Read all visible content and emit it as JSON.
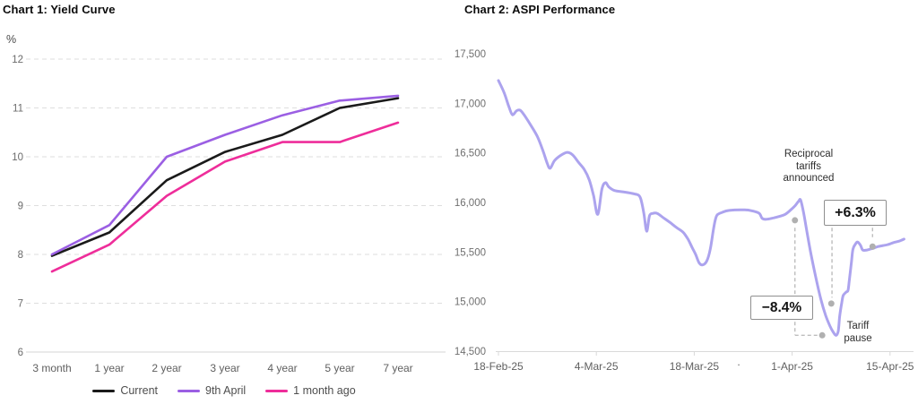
{
  "chart_data": [
    {
      "id": "yield-curve",
      "type": "line",
      "title": "Chart 1: Yield Curve",
      "ylabel": "%",
      "categories": [
        "3 month",
        "1 year",
        "2 year",
        "3 year",
        "4 year",
        "5 year",
        "7 year"
      ],
      "series": [
        {
          "name": "Current",
          "color": "#1a1a1a",
          "values": [
            7.97,
            8.45,
            9.52,
            10.1,
            10.45,
            11.0,
            11.2
          ]
        },
        {
          "name": "9th April",
          "color": "#9b5fe3",
          "values": [
            8.0,
            8.6,
            10.0,
            10.45,
            10.85,
            11.15,
            11.25
          ]
        },
        {
          "name": "1 month ago",
          "color": "#ee2d9a",
          "values": [
            7.65,
            8.2,
            9.2,
            9.9,
            10.3,
            10.3,
            10.7
          ]
        }
      ],
      "ylim": [
        6,
        12
      ],
      "yticks": [
        12,
        11,
        10,
        9,
        8,
        7,
        6
      ],
      "grid": "dashed horizontal gridlines with solid baseline",
      "legend_position": "bottom"
    },
    {
      "id": "aspi-performance",
      "type": "line",
      "title": "Chart 2: ASPI Performance",
      "x_axis": "trading dates, expressed as day offsets from 18-Feb-25",
      "xticks": [
        {
          "day": 0,
          "label": "18-Feb-25"
        },
        {
          "day": 14,
          "label": "4-Mar-25"
        },
        {
          "day": 28,
          "label": "18-Mar-25"
        },
        {
          "day": 42,
          "label": "1-Apr-25"
        },
        {
          "day": 56,
          "label": "15-Apr-25"
        }
      ],
      "xlim": [
        0,
        58.5
      ],
      "ylim": [
        14500,
        17500
      ],
      "yticks": [
        17500,
        17000,
        16500,
        16000,
        15500,
        15000,
        14500
      ],
      "grid": "none",
      "series": [
        {
          "name": "ASPI",
          "color": "#aca3ee",
          "points": [
            [
              0,
              17230
            ],
            [
              0.8,
              17110
            ],
            [
              1.5,
              16965
            ],
            [
              2,
              16885
            ],
            [
              2.6,
              16925
            ],
            [
              3.1,
              16930
            ],
            [
              3.7,
              16880
            ],
            [
              4.7,
              16770
            ],
            [
              5.6,
              16660
            ],
            [
              6.4,
              16515
            ],
            [
              7,
              16390
            ],
            [
              7.4,
              16345
            ],
            [
              8,
              16420
            ],
            [
              8.8,
              16470
            ],
            [
              9.8,
              16505
            ],
            [
              10.6,
              16480
            ],
            [
              11.5,
              16400
            ],
            [
              12.3,
              16330
            ],
            [
              13,
              16225
            ],
            [
              13.6,
              16070
            ],
            [
              14.2,
              15880
            ],
            [
              14.8,
              16135
            ],
            [
              15.3,
              16200
            ],
            [
              15.8,
              16155
            ],
            [
              16.6,
              16120
            ],
            [
              18,
              16105
            ],
            [
              19.5,
              16085
            ],
            [
              20.1,
              16070
            ],
            [
              20.4,
              16025
            ],
            [
              20.8,
              15890
            ],
            [
              21.2,
              15710
            ],
            [
              21.6,
              15865
            ],
            [
              22.1,
              15890
            ],
            [
              22.7,
              15890
            ],
            [
              23.6,
              15845
            ],
            [
              24.5,
              15800
            ],
            [
              25.5,
              15745
            ],
            [
              26.4,
              15700
            ],
            [
              27.1,
              15630
            ],
            [
              27.7,
              15545
            ],
            [
              28.2,
              15475
            ],
            [
              28.7,
              15390
            ],
            [
              29.2,
              15370
            ],
            [
              29.8,
              15410
            ],
            [
              30.3,
              15530
            ],
            [
              30.7,
              15710
            ],
            [
              31,
              15820
            ],
            [
              31.3,
              15875
            ],
            [
              32,
              15900
            ],
            [
              33,
              15920
            ],
            [
              35.2,
              15925
            ],
            [
              36.3,
              15915
            ],
            [
              37.3,
              15890
            ],
            [
              37.7,
              15840
            ],
            [
              38.3,
              15830
            ],
            [
              39.4,
              15845
            ],
            [
              40.2,
              15860
            ],
            [
              41,
              15880
            ],
            [
              41.8,
              15925
            ],
            [
              42.4,
              15965
            ],
            [
              42.9,
              16010
            ],
            [
              43.2,
              16025
            ],
            [
              43.6,
              15910
            ],
            [
              44.1,
              15710
            ],
            [
              44.7,
              15475
            ],
            [
              45.4,
              15240
            ],
            [
              46.1,
              15025
            ],
            [
              46.8,
              14860
            ],
            [
              47.4,
              14755
            ],
            [
              47.9,
              14690
            ],
            [
              48.3,
              14660
            ],
            [
              48.6,
              14705
            ],
            [
              48.8,
              14850
            ],
            [
              49.1,
              14990
            ],
            [
              49.3,
              15060
            ],
            [
              49.7,
              15095
            ],
            [
              50,
              15115
            ],
            [
              50.2,
              15230
            ],
            [
              50.5,
              15410
            ],
            [
              50.7,
              15530
            ],
            [
              51.1,
              15585
            ],
            [
              51.4,
              15600
            ],
            [
              51.8,
              15565
            ],
            [
              52.1,
              15520
            ],
            [
              52.7,
              15520
            ],
            [
              53.2,
              15530
            ],
            [
              53.7,
              15540
            ],
            [
              54.3,
              15555
            ],
            [
              55,
              15565
            ],
            [
              55.7,
              15575
            ],
            [
              56.5,
              15595
            ],
            [
              57.3,
              15610
            ],
            [
              58,
              15630
            ]
          ]
        }
      ],
      "annotations": {
        "announce_label": "Reciprocal tariffs announced",
        "drop_label": "−8.4%",
        "rebound_label": "+6.3%",
        "pause_label": "Tariff pause",
        "axis_mark": ".",
        "marker_dots": [
          [
            42.4,
            15820
          ],
          [
            46.3,
            14660
          ],
          [
            47.6,
            14980
          ],
          [
            53.5,
            15555
          ]
        ],
        "dashed_lines": [
          [
            [
              42.4,
              15745
            ],
            [
              42.4,
              14665
            ]
          ],
          [
            [
              42.4,
              14660
            ],
            [
              45.7,
              14660
            ]
          ],
          [
            [
              47.7,
              15745
            ],
            [
              47.7,
              15040
            ]
          ],
          [
            [
              53.5,
              15745
            ],
            [
              53.5,
              15650
            ]
          ]
        ]
      }
    }
  ]
}
